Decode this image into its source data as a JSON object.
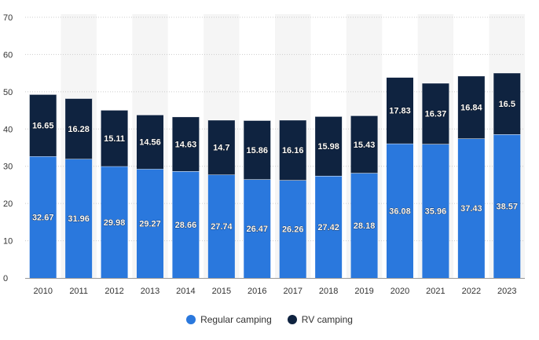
{
  "chart_data": {
    "type": "bar",
    "stacked": true,
    "categories": [
      "2010",
      "2011",
      "2012",
      "2013",
      "2014",
      "2015",
      "2016",
      "2017",
      "2018",
      "2019",
      "2020",
      "2021",
      "2022",
      "2023"
    ],
    "series": [
      {
        "name": "Regular camping",
        "color": "#2a78dd",
        "values": [
          32.67,
          31.96,
          29.98,
          29.27,
          28.66,
          27.74,
          26.47,
          26.26,
          27.42,
          28.18,
          36.08,
          35.96,
          37.43,
          38.57
        ]
      },
      {
        "name": "RV camping",
        "color": "#0f2340",
        "values": [
          16.65,
          16.28,
          15.11,
          14.56,
          14.63,
          14.7,
          15.86,
          16.16,
          15.98,
          15.43,
          17.83,
          16.37,
          16.84,
          16.5
        ]
      }
    ],
    "data_labels": {
      "Regular camping": [
        "32.67",
        "31.96",
        "29.98",
        "29.27",
        "28.66",
        "27.74",
        "26.47",
        "26.26",
        "27.42",
        "28.18",
        "36.08",
        "35.96",
        "37.43",
        "38.57"
      ],
      "RV camping": [
        "16.65",
        "16.28",
        "15.11",
        "14.56",
        "14.63",
        "14.7",
        "15.86",
        "16.16",
        "15.98",
        "15.43",
        "17.83",
        "16.37",
        "16.84",
        "16.5"
      ]
    },
    "ylim": [
      0,
      70
    ],
    "yticks": [
      "0",
      "10",
      "20",
      "30",
      "40",
      "50",
      "60",
      "70"
    ],
    "grid": true,
    "legend_position": "bottom-center",
    "colors": {
      "band": "#f5f5f5",
      "grid": "#cccccc",
      "tick_text": "#333333",
      "label_text": "#ffffff"
    }
  }
}
